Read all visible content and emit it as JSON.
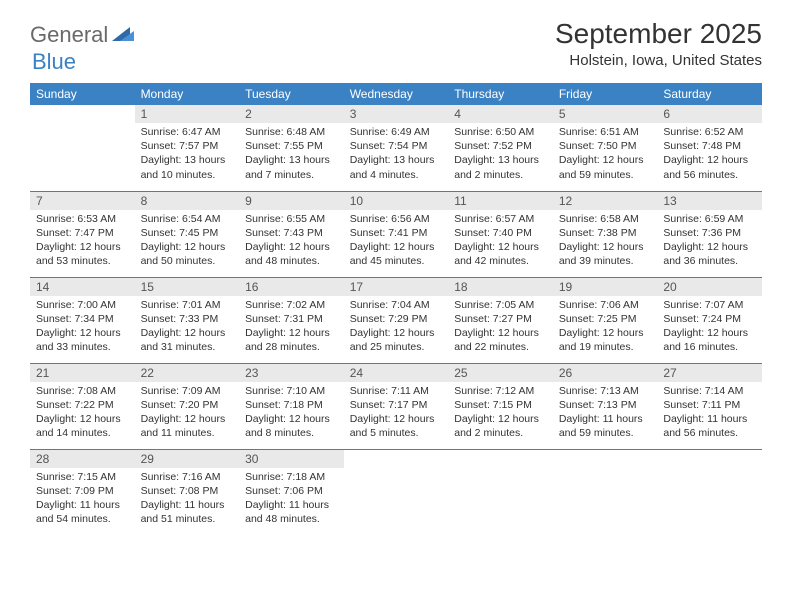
{
  "logo": {
    "text1": "General",
    "text2": "Blue"
  },
  "title": "September 2025",
  "location": "Holstein, Iowa, United States",
  "colors": {
    "header_bg": "#3b82c4",
    "header_fg": "#ffffff",
    "daynum_bg": "#e9e9e9",
    "page_bg": "#ffffff",
    "text": "#333333",
    "logo_gray": "#6a6a6a",
    "logo_blue": "#3b82c4"
  },
  "weekdays": [
    "Sunday",
    "Monday",
    "Tuesday",
    "Wednesday",
    "Thursday",
    "Friday",
    "Saturday"
  ],
  "weeks": [
    [
      null,
      {
        "n": "1",
        "sr": "Sunrise: 6:47 AM",
        "ss": "Sunset: 7:57 PM",
        "dl": "Daylight: 13 hours and 10 minutes."
      },
      {
        "n": "2",
        "sr": "Sunrise: 6:48 AM",
        "ss": "Sunset: 7:55 PM",
        "dl": "Daylight: 13 hours and 7 minutes."
      },
      {
        "n": "3",
        "sr": "Sunrise: 6:49 AM",
        "ss": "Sunset: 7:54 PM",
        "dl": "Daylight: 13 hours and 4 minutes."
      },
      {
        "n": "4",
        "sr": "Sunrise: 6:50 AM",
        "ss": "Sunset: 7:52 PM",
        "dl": "Daylight: 13 hours and 2 minutes."
      },
      {
        "n": "5",
        "sr": "Sunrise: 6:51 AM",
        "ss": "Sunset: 7:50 PM",
        "dl": "Daylight: 12 hours and 59 minutes."
      },
      {
        "n": "6",
        "sr": "Sunrise: 6:52 AM",
        "ss": "Sunset: 7:48 PM",
        "dl": "Daylight: 12 hours and 56 minutes."
      }
    ],
    [
      {
        "n": "7",
        "sr": "Sunrise: 6:53 AM",
        "ss": "Sunset: 7:47 PM",
        "dl": "Daylight: 12 hours and 53 minutes."
      },
      {
        "n": "8",
        "sr": "Sunrise: 6:54 AM",
        "ss": "Sunset: 7:45 PM",
        "dl": "Daylight: 12 hours and 50 minutes."
      },
      {
        "n": "9",
        "sr": "Sunrise: 6:55 AM",
        "ss": "Sunset: 7:43 PM",
        "dl": "Daylight: 12 hours and 48 minutes."
      },
      {
        "n": "10",
        "sr": "Sunrise: 6:56 AM",
        "ss": "Sunset: 7:41 PM",
        "dl": "Daylight: 12 hours and 45 minutes."
      },
      {
        "n": "11",
        "sr": "Sunrise: 6:57 AM",
        "ss": "Sunset: 7:40 PM",
        "dl": "Daylight: 12 hours and 42 minutes."
      },
      {
        "n": "12",
        "sr": "Sunrise: 6:58 AM",
        "ss": "Sunset: 7:38 PM",
        "dl": "Daylight: 12 hours and 39 minutes."
      },
      {
        "n": "13",
        "sr": "Sunrise: 6:59 AM",
        "ss": "Sunset: 7:36 PM",
        "dl": "Daylight: 12 hours and 36 minutes."
      }
    ],
    [
      {
        "n": "14",
        "sr": "Sunrise: 7:00 AM",
        "ss": "Sunset: 7:34 PM",
        "dl": "Daylight: 12 hours and 33 minutes."
      },
      {
        "n": "15",
        "sr": "Sunrise: 7:01 AM",
        "ss": "Sunset: 7:33 PM",
        "dl": "Daylight: 12 hours and 31 minutes."
      },
      {
        "n": "16",
        "sr": "Sunrise: 7:02 AM",
        "ss": "Sunset: 7:31 PM",
        "dl": "Daylight: 12 hours and 28 minutes."
      },
      {
        "n": "17",
        "sr": "Sunrise: 7:04 AM",
        "ss": "Sunset: 7:29 PM",
        "dl": "Daylight: 12 hours and 25 minutes."
      },
      {
        "n": "18",
        "sr": "Sunrise: 7:05 AM",
        "ss": "Sunset: 7:27 PM",
        "dl": "Daylight: 12 hours and 22 minutes."
      },
      {
        "n": "19",
        "sr": "Sunrise: 7:06 AM",
        "ss": "Sunset: 7:25 PM",
        "dl": "Daylight: 12 hours and 19 minutes."
      },
      {
        "n": "20",
        "sr": "Sunrise: 7:07 AM",
        "ss": "Sunset: 7:24 PM",
        "dl": "Daylight: 12 hours and 16 minutes."
      }
    ],
    [
      {
        "n": "21",
        "sr": "Sunrise: 7:08 AM",
        "ss": "Sunset: 7:22 PM",
        "dl": "Daylight: 12 hours and 14 minutes."
      },
      {
        "n": "22",
        "sr": "Sunrise: 7:09 AM",
        "ss": "Sunset: 7:20 PM",
        "dl": "Daylight: 12 hours and 11 minutes."
      },
      {
        "n": "23",
        "sr": "Sunrise: 7:10 AM",
        "ss": "Sunset: 7:18 PM",
        "dl": "Daylight: 12 hours and 8 minutes."
      },
      {
        "n": "24",
        "sr": "Sunrise: 7:11 AM",
        "ss": "Sunset: 7:17 PM",
        "dl": "Daylight: 12 hours and 5 minutes."
      },
      {
        "n": "25",
        "sr": "Sunrise: 7:12 AM",
        "ss": "Sunset: 7:15 PM",
        "dl": "Daylight: 12 hours and 2 minutes."
      },
      {
        "n": "26",
        "sr": "Sunrise: 7:13 AM",
        "ss": "Sunset: 7:13 PM",
        "dl": "Daylight: 11 hours and 59 minutes."
      },
      {
        "n": "27",
        "sr": "Sunrise: 7:14 AM",
        "ss": "Sunset: 7:11 PM",
        "dl": "Daylight: 11 hours and 56 minutes."
      }
    ],
    [
      {
        "n": "28",
        "sr": "Sunrise: 7:15 AM",
        "ss": "Sunset: 7:09 PM",
        "dl": "Daylight: 11 hours and 54 minutes."
      },
      {
        "n": "29",
        "sr": "Sunrise: 7:16 AM",
        "ss": "Sunset: 7:08 PM",
        "dl": "Daylight: 11 hours and 51 minutes."
      },
      {
        "n": "30",
        "sr": "Sunrise: 7:18 AM",
        "ss": "Sunset: 7:06 PM",
        "dl": "Daylight: 11 hours and 48 minutes."
      },
      null,
      null,
      null,
      null
    ]
  ]
}
